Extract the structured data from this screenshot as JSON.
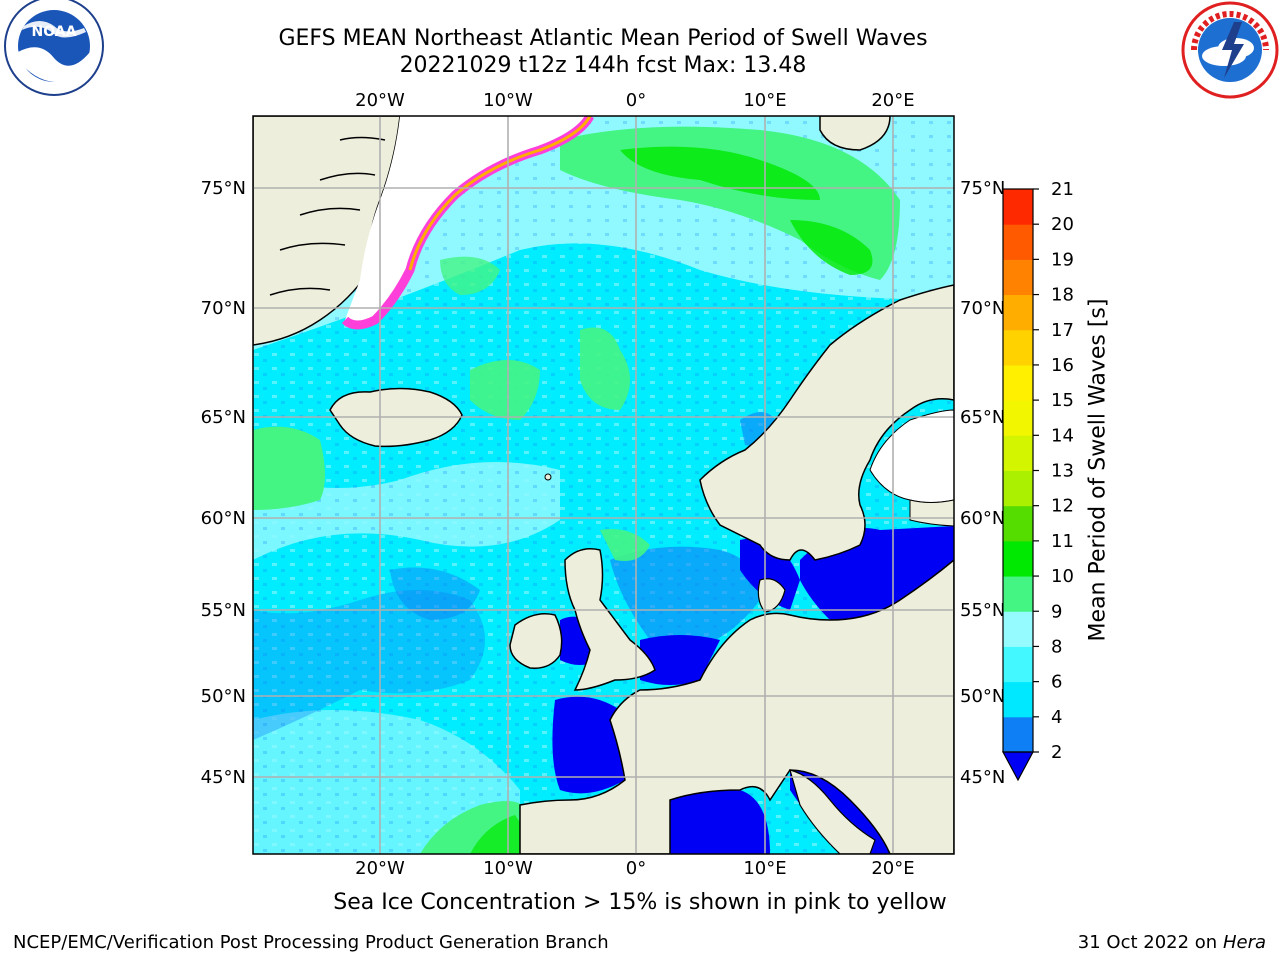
{
  "title_line1": "GEFS MEAN Northeast Atlantic Mean Period of Swell Waves",
  "title_line2": "20221029 t12z 144h fcst   Max: 13.48",
  "footnote": "Sea Ice Concentration > 15% is shown in pink to yellow",
  "credit_left": "NCEP/EMC/Verification Post Processing Product Generation Branch",
  "credit_date": "31 Oct 2022 on ",
  "credit_host": "Hera",
  "logos": {
    "left": {
      "icon": "noaa-logo-icon",
      "text": "NOAA"
    },
    "right": {
      "icon": "nws-logo-icon",
      "ring_text": "NATIONAL WEATHER SERVICE"
    }
  },
  "axes": {
    "lon_ticks": [
      "20°W",
      "10°W",
      "0°",
      "10°E",
      "20°E"
    ],
    "lat_ticks": [
      "75°N",
      "70°N",
      "65°N",
      "60°N",
      "55°N",
      "50°N",
      "45°N"
    ]
  },
  "colorbar": {
    "label": "Mean Period of Swell Waves [s]",
    "tick_labels": [
      "2",
      "4",
      "6",
      "8",
      "9",
      "10",
      "11",
      "12",
      "13",
      "14",
      "15",
      "16",
      "17",
      "18",
      "19",
      "20",
      "21"
    ],
    "colors": [
      "#0f7ff6",
      "#00e8ff",
      "#43f9ff",
      "#96fbff",
      "#44f584",
      "#00e900",
      "#55dd00",
      "#aaf000",
      "#d3f500",
      "#f2f700",
      "#fff000",
      "#ffd200",
      "#ffae00",
      "#ff8200",
      "#ff5a00",
      "#ff2900"
    ],
    "under_color": "#0000f5"
  },
  "map_colors": {
    "land": "#eeeedd",
    "ocean_main": "#00ecff",
    "ocean_light": "#8ff9ff",
    "green": "#44f584",
    "bright_green": "#00e900",
    "mid_blue": "#0f7ff6",
    "deep_blue": "#0000f5",
    "ice_pink": "#ff3fd9",
    "ice_orange": "#ffae00"
  }
}
